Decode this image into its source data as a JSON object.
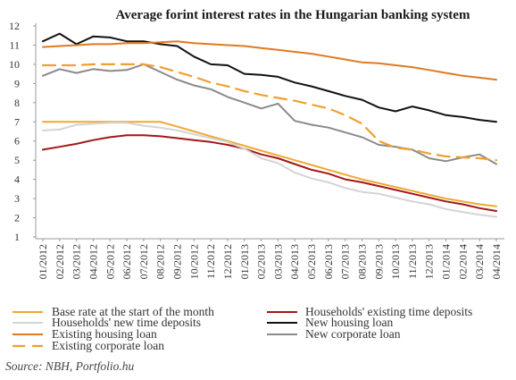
{
  "chart_data": {
    "type": "line",
    "title": "Average forint interest rates in the Hungarian banking system",
    "source": "Source: NBH, Portfolio.hu",
    "ylim": [
      1,
      12
    ],
    "yticks": [
      1,
      2,
      3,
      4,
      5,
      6,
      7,
      8,
      9,
      10,
      11,
      12
    ],
    "grid": false,
    "legend_position": "bottom",
    "categories": [
      "01/2012",
      "02/2012",
      "03/2012",
      "04/2012",
      "05/2012",
      "06/2012",
      "07/2012",
      "08/2012",
      "09/2012",
      "10/2012",
      "11/2012",
      "12/2012",
      "01/2013",
      "02/2013",
      "03/2013",
      "04/2013",
      "05/2013",
      "06/2013",
      "07/2013",
      "08/2013",
      "09/2013",
      "10/2013",
      "11/2013",
      "12/2013",
      "01/2014",
      "02/2014",
      "03/2014",
      "04/2014"
    ],
    "series": [
      {
        "name": "Base rate at the start of the month",
        "color": "#f0a830",
        "dash": false,
        "values": [
          7.0,
          7.0,
          7.0,
          7.0,
          7.0,
          7.0,
          7.0,
          7.0,
          6.75,
          6.5,
          6.25,
          6.0,
          5.75,
          5.5,
          5.25,
          5.0,
          4.75,
          4.5,
          4.25,
          4.0,
          3.8,
          3.6,
          3.4,
          3.2,
          3.0,
          2.85,
          2.7,
          2.6
        ]
      },
      {
        "name": "Households' existing time deposits",
        "color": "#a01818",
        "dash": false,
        "values": [
          5.55,
          5.7,
          5.85,
          6.05,
          6.2,
          6.3,
          6.3,
          6.25,
          6.15,
          6.05,
          5.95,
          5.8,
          5.6,
          5.3,
          5.1,
          4.8,
          4.5,
          4.3,
          4.0,
          3.85,
          3.65,
          3.45,
          3.25,
          3.05,
          2.85,
          2.7,
          2.5,
          2.35
        ]
      },
      {
        "name": "Households' new time deposits",
        "color": "#d4d4d4",
        "dash": false,
        "values": [
          6.55,
          6.6,
          6.85,
          6.9,
          6.95,
          6.95,
          6.8,
          6.7,
          6.55,
          6.35,
          6.15,
          5.95,
          5.6,
          5.1,
          4.85,
          4.35,
          4.05,
          3.85,
          3.55,
          3.35,
          3.25,
          3.05,
          2.85,
          2.7,
          2.45,
          2.3,
          2.15,
          2.05
        ]
      },
      {
        "name": "New housing loan",
        "color": "#111111",
        "dash": false,
        "values": [
          11.2,
          11.6,
          11.05,
          11.45,
          11.4,
          11.2,
          11.2,
          11.05,
          10.95,
          10.4,
          10.0,
          9.95,
          9.5,
          9.45,
          9.35,
          9.05,
          8.85,
          8.6,
          8.35,
          8.15,
          7.75,
          7.55,
          7.8,
          7.6,
          7.35,
          7.25,
          7.1,
          7.0
        ]
      },
      {
        "name": "Existing housing loan",
        "color": "#e07a20",
        "dash": false,
        "values": [
          10.9,
          10.95,
          11.0,
          11.05,
          11.05,
          11.1,
          11.1,
          11.15,
          11.2,
          11.1,
          11.05,
          11.0,
          10.95,
          10.85,
          10.75,
          10.65,
          10.55,
          10.4,
          10.25,
          10.1,
          10.05,
          9.95,
          9.85,
          9.7,
          9.55,
          9.4,
          9.3,
          9.2
        ]
      },
      {
        "name": "New corporate loan",
        "color": "#8a8a8a",
        "dash": false,
        "values": [
          9.4,
          9.75,
          9.55,
          9.75,
          9.65,
          9.7,
          10.0,
          9.6,
          9.2,
          8.9,
          8.7,
          8.3,
          8.0,
          7.7,
          7.95,
          7.05,
          6.85,
          6.7,
          6.45,
          6.2,
          5.8,
          5.7,
          5.55,
          5.1,
          4.95,
          5.15,
          5.3,
          4.8
        ]
      },
      {
        "name": "Existing corporate loan",
        "color": "#f0a030",
        "dash": true,
        "values": [
          9.95,
          9.95,
          9.95,
          10.0,
          10.0,
          10.0,
          10.0,
          9.85,
          9.6,
          9.35,
          9.05,
          8.85,
          8.6,
          8.4,
          8.25,
          8.1,
          7.9,
          7.7,
          7.35,
          6.9,
          6.0,
          5.65,
          5.55,
          5.35,
          5.2,
          5.15,
          5.1,
          5.0
        ]
      }
    ]
  }
}
